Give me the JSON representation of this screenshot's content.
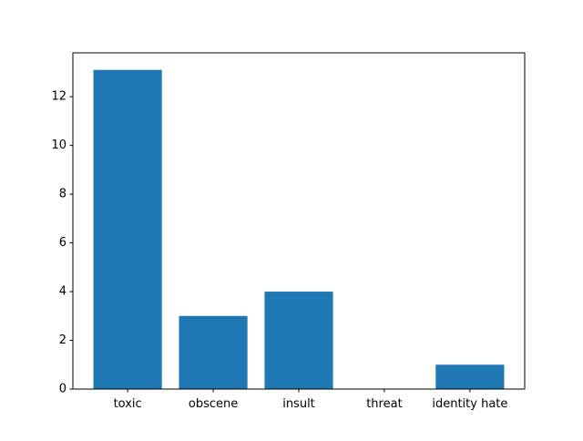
{
  "chart_data": {
    "type": "bar",
    "title": "",
    "xlabel": "",
    "ylabel": "",
    "categories": [
      "toxic",
      "obscene",
      "insult",
      "threat",
      "identity hate"
    ],
    "values": [
      13.1,
      3.0,
      4.0,
      0,
      1.0
    ],
    "ylim": [
      0,
      13.8
    ],
    "yticks": [
      0,
      2,
      4,
      6,
      8,
      10,
      12
    ],
    "grid": false,
    "legend": "none",
    "bar_color": "#1f77b4"
  }
}
